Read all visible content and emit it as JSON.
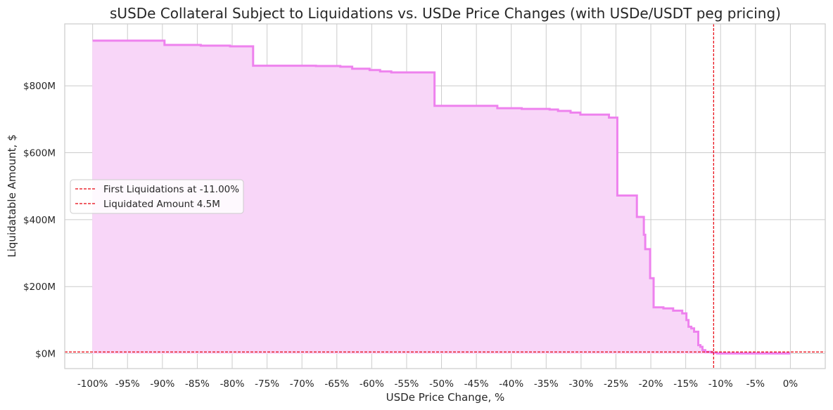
{
  "chart_data": {
    "type": "area",
    "title": "sUSDe Collateral Subject to Liquidations vs. USDe Price Changes (with USDe/USDT peg pricing)",
    "xlabel": "USDe Price Change, %",
    "ylabel": "Liquidatable Amount, $",
    "xlim": [
      -104,
      5
    ],
    "ylim": [
      -45,
      985
    ],
    "grid": true,
    "legend_position": "center-left",
    "x_ticks": [
      -100,
      -95,
      -90,
      -85,
      -80,
      -75,
      -70,
      -65,
      -60,
      -55,
      -50,
      -45,
      -40,
      -35,
      -30,
      -25,
      -20,
      -15,
      -10,
      -5,
      0
    ],
    "x_tick_labels": [
      "-100%",
      "-95%",
      "-90%",
      "-85%",
      "-80%",
      "-75%",
      "-70%",
      "-65%",
      "-60%",
      "-55%",
      "-50%",
      "-45%",
      "-40%",
      "-35%",
      "-30%",
      "-25%",
      "-20%",
      "-15%",
      "-10%",
      "-5%",
      "0%"
    ],
    "y_ticks": [
      0,
      200,
      400,
      600,
      800
    ],
    "y_tick_labels": [
      "$0M",
      "$200M",
      "$400M",
      "$600M",
      "$800M"
    ],
    "y_unit": "$M",
    "series": [
      {
        "name": "",
        "color": "#ee82ee",
        "fill_color": "#f8d6f8",
        "x": [
          -100,
          -89.7,
          -89.7,
          -84.5,
          -84.5,
          -80.3,
          -80.3,
          -77,
          -77,
          -68,
          -68,
          -64.5,
          -64.5,
          -62.8,
          -62.8,
          -60.3,
          -60.3,
          -58.8,
          -58.8,
          -57.2,
          -57.2,
          -51,
          -51,
          -42,
          -42,
          -38.5,
          -38.5,
          -34.5,
          -34.5,
          -33.3,
          -33.3,
          -31.5,
          -31.5,
          -30.1,
          -30.1,
          -26,
          -26,
          -24.8,
          -24.8,
          -22,
          -22,
          -21,
          -21,
          -20.8,
          -20.8,
          -20.1,
          -20.1,
          -19.6,
          -19.6,
          -18.2,
          -18.2,
          -16.8,
          -16.8,
          -15.5,
          -15.5,
          -14.9,
          -14.9,
          -14.6,
          -14.6,
          -14.2,
          -14.2,
          -13.8,
          -13.8,
          -13.2,
          -13.2,
          -12.9,
          -12.9,
          -12.6,
          -12.6,
          -12.2,
          -12.2,
          -11.3,
          -11.3,
          -11,
          -11,
          -10.5,
          -10.5,
          0
        ],
        "y": [
          935,
          935,
          922,
          922,
          920,
          920,
          918,
          918,
          860,
          860,
          859,
          859,
          857,
          857,
          851,
          851,
          847,
          847,
          843,
          843,
          840,
          840,
          740,
          740,
          733,
          733,
          731,
          731,
          729,
          729,
          725,
          725,
          720,
          720,
          714,
          714,
          705,
          705,
          472,
          472,
          408,
          408,
          355,
          355,
          312,
          312,
          225,
          225,
          138,
          138,
          135,
          135,
          128,
          128,
          120,
          120,
          100,
          100,
          80,
          80,
          75,
          75,
          65,
          65,
          25,
          25,
          20,
          20,
          10,
          10,
          5,
          5,
          3,
          3,
          2,
          2,
          0,
          0
        ]
      }
    ],
    "annotations": [
      {
        "type": "vline",
        "x": -11,
        "color": "#e8000b",
        "style": "dashed",
        "legend": "First Liquidations at -11.00%"
      },
      {
        "type": "hline",
        "y": 4.5,
        "color": "#e8000b",
        "style": "dashed",
        "legend": "Liquidated Amount 4.5M"
      }
    ]
  }
}
